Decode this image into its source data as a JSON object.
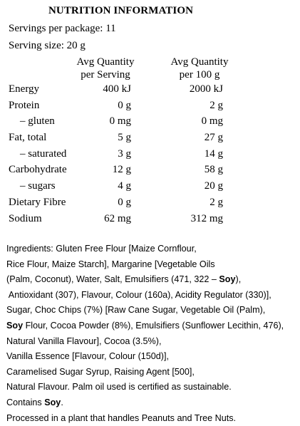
{
  "panel": {
    "title": "NUTRITION INFORMATION",
    "servings_per_package": "Servings per package: 11",
    "serving_size": "Serving size: 20 g",
    "col1_header_line1": "Avg Quantity",
    "col1_header_line2": "per Serving",
    "col2_header_line1": "Avg Quantity",
    "col2_header_line2": "per 100 g",
    "rows": [
      {
        "label": "Energy",
        "per_serving": "400 kJ",
        "per_100g": "2000 kJ"
      },
      {
        "label": "Protein",
        "per_serving": "0 g",
        "per_100g": "2 g"
      },
      {
        "label": "– gluten",
        "per_serving": "0 mg",
        "per_100g": "0 mg"
      },
      {
        "label": "Fat, total",
        "per_serving": "5 g",
        "per_100g": "27 g"
      },
      {
        "label": "– saturated",
        "per_serving": "3 g",
        "per_100g": "14 g"
      },
      {
        "label": "Carbohydrate",
        "per_serving": "12 g",
        "per_100g": "58 g"
      },
      {
        "label": "– sugars",
        "per_serving": "4 g",
        "per_100g": "20 g"
      },
      {
        "label": "Dietary Fibre",
        "per_serving": "0 g",
        "per_100g": "2 g"
      },
      {
        "label": "Sodium",
        "per_serving": "62 mg",
        "per_100g": "312 mg"
      }
    ]
  },
  "ingredients": {
    "l1": "Ingredients: Gluten Free Flour [Maize Cornflour,",
    "l2": "Rice Flour, Maize Starch], Margarine [Vegetable Oils",
    "l3a": "(Palm, Coconut), Water, Salt, Emulsifiers (471, 322 – ",
    "l3b": "Soy",
    "l3c": "),",
    "l4": " Antioxidant (307), Flavour, Colour (160a), Acidity Regulator (330)],",
    "l5": "Sugar, Choc Chips (7%) [Raw Cane Sugar, Vegetable Oil (Palm),",
    "l6a": "Soy",
    "l6b": " Flour, Cocoa Powder (8%), Emulsifiers (Sunflower Lecithin, 476),",
    "l7": "Natural Vanilla Flavour], Cocoa (3.5%),",
    "l8": "Vanilla Essence [Flavour, Colour (150d)],",
    "l9": "Caramelised Sugar Syrup, Raising Agent [500],",
    "l10": "Natural Flavour. Palm oil used is certified as sustainable.",
    "l11a": "Contains ",
    "l11b": "Soy",
    "l11c": ".",
    "l12": "Processed in a plant that handles Peanuts and Tree Nuts."
  }
}
